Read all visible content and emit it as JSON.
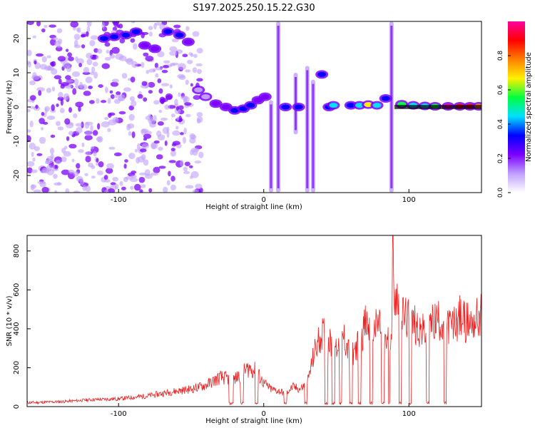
{
  "title": "S197.2025.250.15.22.G30",
  "colormap": [
    "#ffffff",
    "#c0a0ff",
    "#7b00ff",
    "#0000ff",
    "#00e0ff",
    "#00ff40",
    "#fff000",
    "#ff8000",
    "#ff0000",
    "#ff00a0"
  ],
  "chart_data": [
    {
      "type": "heatmap",
      "title": "S197.2025.250.15.22.G30",
      "xlabel": "Height of straight line (km)",
      "ylabel": "Frequency (Hz)",
      "xlim": [
        -163,
        150
      ],
      "ylim": [
        -25,
        25
      ],
      "xticks": [
        -100,
        0,
        100
      ],
      "xtick_labels": [
        "-100",
        "0",
        "100"
      ],
      "yticks": [
        -20,
        -10,
        0,
        10,
        20
      ],
      "ytick_labels": [
        "-20",
        "-10",
        "0",
        "10",
        "20"
      ],
      "colorbar_label": "Normalized spectral amplitude",
      "colorbar_range": [
        0,
        1
      ],
      "colorbar_ticks": [
        "0.0",
        "0.2",
        "0.4",
        "0.6",
        "0.8"
      ],
      "blobs": [
        {
          "x": -110,
          "y": 20,
          "v": 0.35
        },
        {
          "x": -103,
          "y": 20.5,
          "v": 0.3
        },
        {
          "x": -95,
          "y": 21,
          "v": 0.3
        },
        {
          "x": -88,
          "y": 22,
          "v": 0.3
        },
        {
          "x": -82,
          "y": 18,
          "v": 0.25
        },
        {
          "x": -75,
          "y": 17,
          "v": 0.25
        },
        {
          "x": -66,
          "y": 22,
          "v": 0.3
        },
        {
          "x": -58,
          "y": 21,
          "v": 0.3
        },
        {
          "x": -52,
          "y": 19,
          "v": 0.25
        },
        {
          "x": -45,
          "y": 5,
          "v": 0.15
        },
        {
          "x": -40,
          "y": 3,
          "v": 0.15
        },
        {
          "x": -33,
          "y": 1,
          "v": 0.18
        },
        {
          "x": -26,
          "y": 0,
          "v": 0.2
        },
        {
          "x": -20,
          "y": -1,
          "v": 0.35
        },
        {
          "x": -14,
          "y": -0.5,
          "v": 0.28
        },
        {
          "x": -9,
          "y": 0.5,
          "v": 0.3
        },
        {
          "x": -4,
          "y": 2,
          "v": 0.25
        },
        {
          "x": 1,
          "y": 3,
          "v": 0.2
        },
        {
          "x": 15,
          "y": 0,
          "v": 0.35
        },
        {
          "x": 24,
          "y": 0,
          "v": 0.35
        },
        {
          "x": 40,
          "y": 9.5,
          "v": 0.3
        },
        {
          "x": 45,
          "y": 0,
          "v": 0.3
        },
        {
          "x": 48,
          "y": 0.5,
          "v": 0.45
        },
        {
          "x": 60,
          "y": 0.5,
          "v": 0.35
        },
        {
          "x": 66,
          "y": 0.5,
          "v": 0.4
        },
        {
          "x": 72,
          "y": 0.7,
          "v": 0.7
        },
        {
          "x": 78,
          "y": 0.5,
          "v": 0.45
        },
        {
          "x": 84,
          "y": 2.5,
          "v": 0.35
        },
        {
          "x": 95,
          "y": 0.8,
          "v": 0.55
        },
        {
          "x": 103,
          "y": 0.5,
          "v": 0.45
        },
        {
          "x": 111,
          "y": 0.3,
          "v": 0.45
        },
        {
          "x": 118,
          "y": 0.2,
          "v": 0.6
        },
        {
          "x": 127,
          "y": 0.2,
          "v": 0.95
        },
        {
          "x": 135,
          "y": 0.2,
          "v": 0.9
        },
        {
          "x": 142,
          "y": 0.2,
          "v": 0.85
        },
        {
          "x": 148,
          "y": 0.2,
          "v": 0.8
        }
      ],
      "streaks": [
        {
          "x": 5,
          "y_from": -25,
          "y_to": 2
        },
        {
          "x": 10,
          "y_from": -25,
          "y_to": 25
        },
        {
          "x": 22,
          "y_from": -8,
          "y_to": 10
        },
        {
          "x": 30,
          "y_from": -25,
          "y_to": 12
        },
        {
          "x": 34,
          "y_from": -25,
          "y_to": 8
        },
        {
          "x": 88,
          "y_from": -25,
          "y_to": 25
        }
      ]
    },
    {
      "type": "line",
      "xlabel": "Height of straight line (km)",
      "ylabel": "SNR (10 * v/v)",
      "xlim": [
        -163,
        150
      ],
      "ylim": [
        0,
        880
      ],
      "xticks": [
        -100,
        0,
        100
      ],
      "xtick_labels": [
        "-100",
        "0",
        "100"
      ],
      "yticks": [
        0,
        200,
        400,
        600,
        800
      ],
      "ytick_labels": [
        "0",
        "200",
        "400",
        "600",
        "800"
      ],
      "series": [
        {
          "name": "SNR",
          "color": "#ee2020",
          "x": [
            -163,
            -140,
            -120,
            -100,
            -80,
            -60,
            -50,
            -40,
            -30,
            -20,
            -10,
            -5,
            0,
            5,
            10,
            15,
            20,
            25,
            30,
            35,
            40,
            45,
            50,
            55,
            60,
            65,
            70,
            75,
            80,
            85,
            88,
            90,
            95,
            100,
            105,
            110,
            115,
            120,
            125,
            130,
            135,
            140,
            145,
            150
          ],
          "values": [
            20,
            25,
            35,
            40,
            55,
            80,
            90,
            110,
            150,
            140,
            200,
            180,
            120,
            90,
            80,
            70,
            100,
            90,
            120,
            280,
            380,
            330,
            300,
            360,
            260,
            320,
            420,
            380,
            430,
            320,
            400,
            610,
            470,
            440,
            420,
            380,
            420,
            450,
            430,
            410,
            460,
            430,
            440,
            470
          ]
        }
      ],
      "peak": {
        "x": 89,
        "y": 880
      }
    }
  ]
}
